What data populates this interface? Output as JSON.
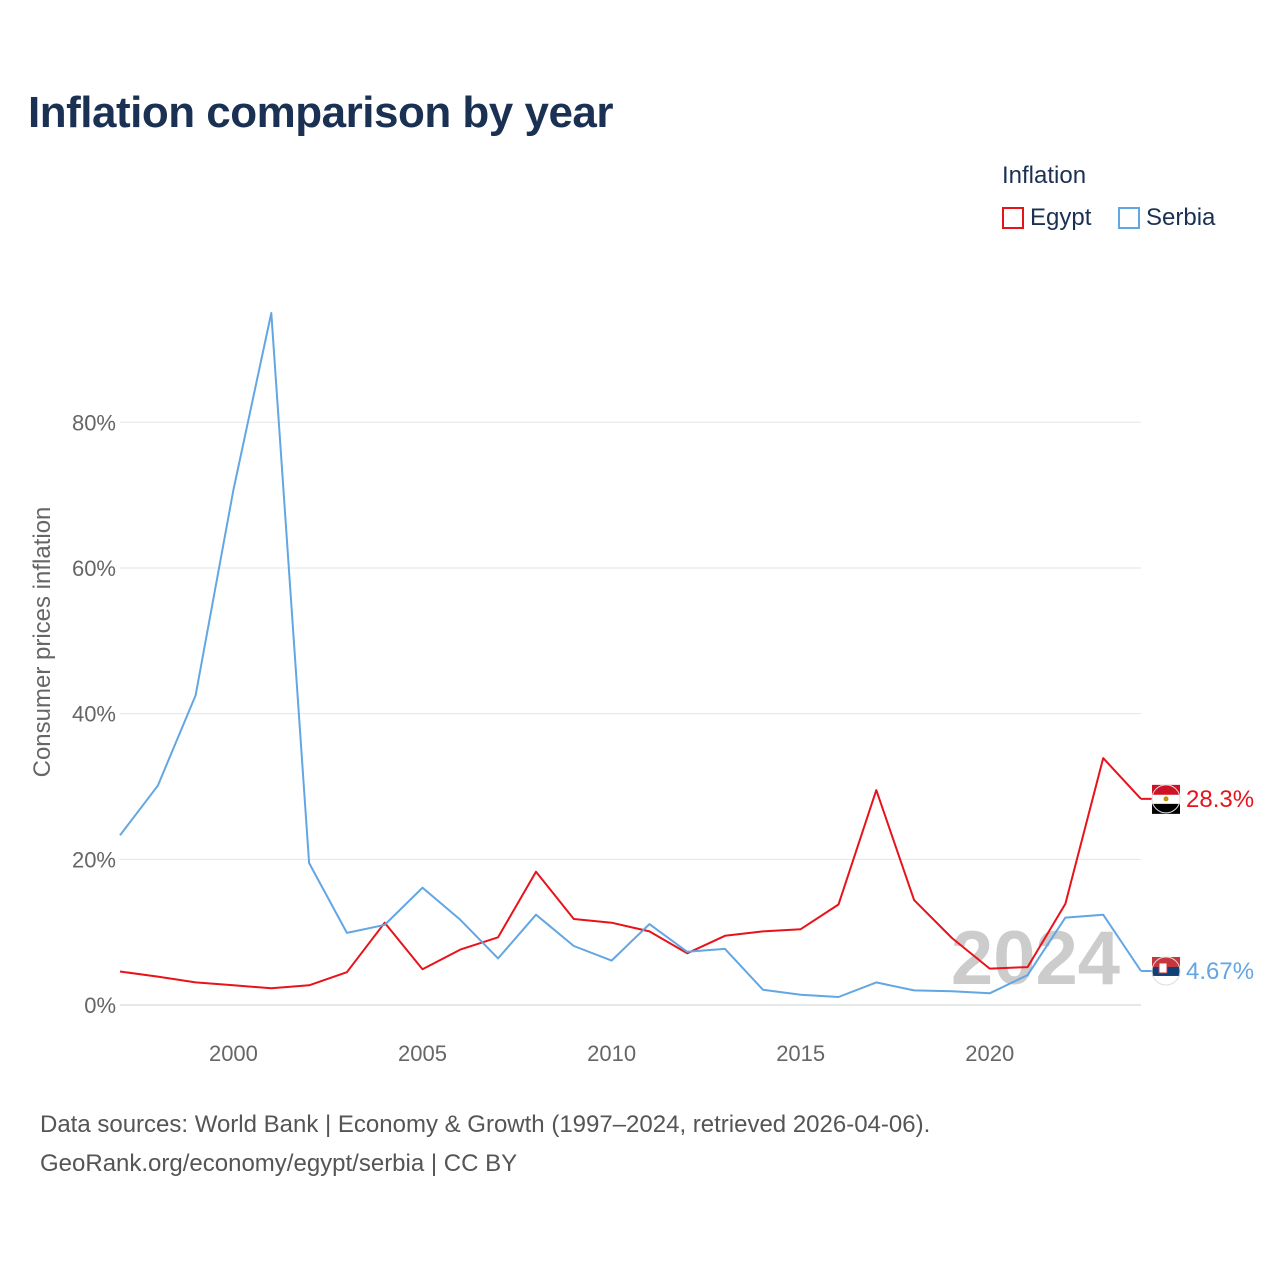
{
  "title": "Inflation comparison by year",
  "legend": {
    "title": "Inflation",
    "items": [
      {
        "label": "Egypt"
      },
      {
        "label": "Serbia"
      }
    ]
  },
  "colors": {
    "egypt": "#e8121a",
    "serbia": "#62a6e4",
    "title": "#1b3153",
    "axis_text": "#666666",
    "watermark": "#cccccc"
  },
  "footer": {
    "line1": "Data sources: World Bank | Economy & Growth (1997–2024, retrieved 2026-04-06).",
    "line2": "GeoRank.org/economy/egypt/serbia | CC BY"
  },
  "chart_data": {
    "type": "line",
    "title": "Inflation comparison by year",
    "xlabel": "",
    "ylabel": "Consumer prices inflation",
    "xlim": [
      1997,
      2024
    ],
    "ylim": [
      0,
      95
    ],
    "x_ticks": [
      "2000",
      "2005",
      "2010",
      "2015",
      "2020"
    ],
    "y_ticks": [
      "0%",
      "20%",
      "40%",
      "60%",
      "80%"
    ],
    "year_watermark": "2024",
    "x": [
      1997,
      1998,
      1999,
      2000,
      2001,
      2002,
      2003,
      2004,
      2005,
      2006,
      2007,
      2008,
      2009,
      2010,
      2011,
      2012,
      2013,
      2014,
      2015,
      2016,
      2017,
      2018,
      2019,
      2020,
      2021,
      2022,
      2023,
      2024
    ],
    "series": [
      {
        "name": "Egypt",
        "end_label": "28.3%",
        "values": [
          4.6,
          3.9,
          3.1,
          2.7,
          2.3,
          2.7,
          4.5,
          11.3,
          4.9,
          7.6,
          9.3,
          18.3,
          11.8,
          11.3,
          10.1,
          7.1,
          9.5,
          10.1,
          10.4,
          13.8,
          29.5,
          14.4,
          9.2,
          5.0,
          5.2,
          13.9,
          33.9,
          28.3
        ]
      },
      {
        "name": "Serbia",
        "end_label": "4.67%",
        "values": [
          23.3,
          30.1,
          42.5,
          70.7,
          95.0,
          19.5,
          9.9,
          11.0,
          16.1,
          11.7,
          6.4,
          12.4,
          8.1,
          6.1,
          11.1,
          7.3,
          7.7,
          2.1,
          1.4,
          1.1,
          3.1,
          2.0,
          1.9,
          1.6,
          4.1,
          12.0,
          12.4,
          4.67
        ]
      }
    ]
  }
}
